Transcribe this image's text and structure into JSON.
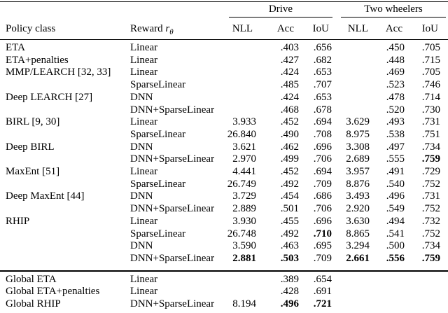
{
  "table": {
    "groups": [
      {
        "label": "Drive"
      },
      {
        "label": "Two wheelers"
      }
    ],
    "headers": {
      "policy": "Policy class",
      "reward_prefix": "Reward",
      "reward_var": "r",
      "reward_sub": "θ",
      "metrics": [
        "NLL",
        "Acc",
        "IoU"
      ]
    },
    "rows": [
      {
        "policy": "ETA",
        "reward": "Linear",
        "values": [
          "",
          ".403",
          ".656",
          "",
          ".450",
          ".705"
        ]
      },
      {
        "policy": "ETA+penalties",
        "reward": "Linear",
        "values": [
          "",
          ".427",
          ".682",
          "",
          ".448",
          ".715"
        ]
      },
      {
        "policy": "MMP/LEARCH [32, 33]",
        "reward": "Linear",
        "values": [
          "",
          ".424",
          ".653",
          "",
          ".469",
          ".705"
        ]
      },
      {
        "policy": "",
        "reward": "SparseLinear",
        "values": [
          "",
          ".485",
          ".707",
          "",
          ".523",
          ".746"
        ]
      },
      {
        "policy": "Deep LEARCH [27]",
        "reward": "DNN",
        "values": [
          "",
          ".424",
          ".653",
          "",
          ".478",
          ".714"
        ]
      },
      {
        "policy": "",
        "reward": "DNN+SparseLinear",
        "values": [
          "",
          ".468",
          ".678",
          "",
          ".520",
          ".730"
        ]
      },
      {
        "policy": "BIRL [9, 30]",
        "reward": "Linear",
        "values": [
          "3.933",
          ".452",
          ".694",
          "3.629",
          ".493",
          ".731"
        ]
      },
      {
        "policy": "",
        "reward": "SparseLinear",
        "values": [
          "26.840",
          ".490",
          ".708",
          "8.975",
          ".538",
          ".751"
        ]
      },
      {
        "policy": "Deep BIRL",
        "reward": "DNN",
        "values": [
          "3.621",
          ".462",
          ".696",
          "3.308",
          ".497",
          ".734"
        ]
      },
      {
        "policy": "",
        "reward": "DNN+SparseLinear",
        "values": [
          "2.970",
          ".499",
          ".706",
          "2.689",
          ".555",
          ".759"
        ],
        "bold": [
          0,
          0,
          0,
          0,
          0,
          1
        ]
      },
      {
        "policy": "MaxEnt [51]",
        "reward": "Linear",
        "values": [
          "4.441",
          ".452",
          ".694",
          "3.957",
          ".491",
          ".729"
        ]
      },
      {
        "policy": "",
        "reward": "SparseLinear",
        "values": [
          "26.749",
          ".492",
          ".709",
          "8.876",
          ".540",
          ".752"
        ]
      },
      {
        "policy": "Deep MaxEnt [44]",
        "reward": "DNN",
        "values": [
          "3.729",
          ".454",
          ".686",
          "3.493",
          ".496",
          ".731"
        ]
      },
      {
        "policy": "",
        "reward": "DNN+SparseLinear",
        "values": [
          "2.889",
          ".501",
          ".706",
          "2.920",
          ".549",
          ".752"
        ]
      },
      {
        "policy": "RHIP",
        "reward": "Linear",
        "values": [
          "3.930",
          ".455",
          ".696",
          "3.630",
          ".494",
          ".732"
        ]
      },
      {
        "policy": "",
        "reward": "SparseLinear",
        "values": [
          "26.748",
          ".492",
          ".710",
          "8.865",
          ".541",
          ".752"
        ],
        "bold": [
          0,
          0,
          1,
          0,
          0,
          0
        ]
      },
      {
        "policy": "",
        "reward": "DNN",
        "values": [
          "3.590",
          ".463",
          ".695",
          "3.294",
          ".500",
          ".734"
        ]
      },
      {
        "policy": "",
        "reward": "DNN+SparseLinear",
        "values": [
          "2.881",
          ".503",
          ".709",
          "2.661",
          ".556",
          ".759"
        ],
        "bold": [
          1,
          1,
          0,
          1,
          1,
          1
        ]
      }
    ],
    "global_rows": [
      {
        "policy": "Global ETA",
        "reward": "Linear",
        "values": [
          "",
          ".389",
          ".654",
          "",
          "",
          ""
        ]
      },
      {
        "policy": "Global ETA+penalties",
        "reward": "Linear",
        "values": [
          "",
          ".428",
          ".691",
          "",
          "",
          ""
        ]
      },
      {
        "policy": "Global RHIP",
        "reward": "DNN+SparseLinear",
        "values": [
          "8.194",
          ".496",
          ".721",
          "",
          "",
          ""
        ],
        "bold": [
          0,
          1,
          1,
          0,
          0,
          0
        ]
      }
    ]
  }
}
